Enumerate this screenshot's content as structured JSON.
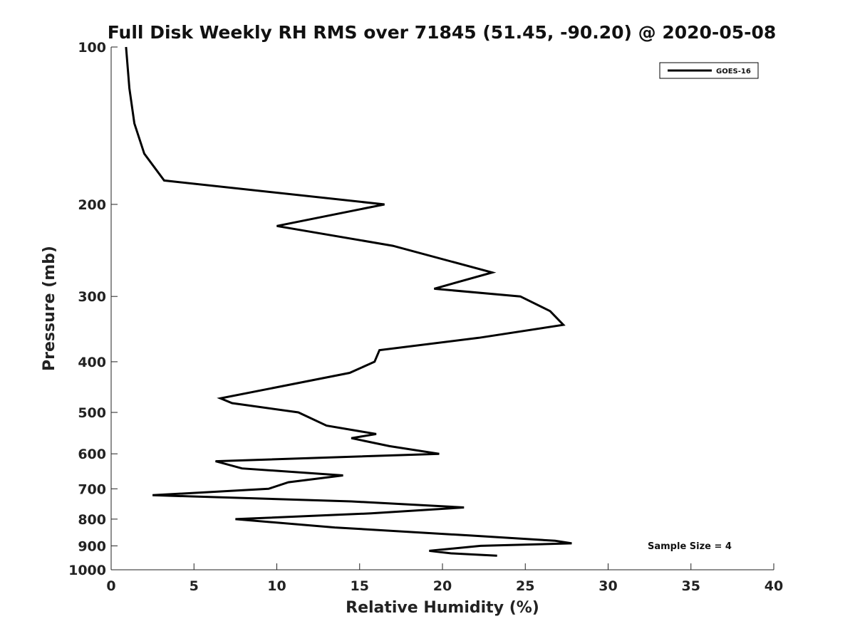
{
  "chart_data": {
    "type": "line",
    "title": "Full Disk Weekly RH RMS over 71845 (51.45, -90.20) @ 2020-05-08",
    "xlabel": "Relative Humidity (%)",
    "ylabel": "Pressure (mb)",
    "xlim": [
      0,
      40
    ],
    "ylim": [
      1000,
      100
    ],
    "yscale": "log",
    "xticks": [
      0,
      5,
      10,
      15,
      20,
      25,
      30,
      35,
      40
    ],
    "yticks": [
      100,
      200,
      300,
      400,
      500,
      600,
      700,
      800,
      900,
      1000
    ],
    "grid": false,
    "legend_position": "top-right",
    "series": [
      {
        "name": "GOES-16",
        "color": "#000000",
        "points": [
          [
            0.9,
            100
          ],
          [
            1.1,
            120
          ],
          [
            1.4,
            140
          ],
          [
            2.0,
            160
          ],
          [
            3.2,
            180
          ],
          [
            16.5,
            200
          ],
          [
            10.0,
            220
          ],
          [
            17.0,
            240
          ],
          [
            23.0,
            270
          ],
          [
            19.5,
            290
          ],
          [
            24.7,
            300
          ],
          [
            26.5,
            320
          ],
          [
            27.3,
            340
          ],
          [
            22.2,
            360
          ],
          [
            16.2,
            380
          ],
          [
            15.9,
            400
          ],
          [
            14.4,
            420
          ],
          [
            6.6,
            470
          ],
          [
            7.3,
            480
          ],
          [
            11.3,
            500
          ],
          [
            13.0,
            530
          ],
          [
            16.0,
            550
          ],
          [
            14.5,
            560
          ],
          [
            16.8,
            580
          ],
          [
            19.8,
            600
          ],
          [
            6.3,
            620
          ],
          [
            7.9,
            640
          ],
          [
            14.0,
            660
          ],
          [
            10.7,
            680
          ],
          [
            9.5,
            700
          ],
          [
            2.5,
            720
          ],
          [
            14.5,
            740
          ],
          [
            21.3,
            760
          ],
          [
            15.7,
            780
          ],
          [
            7.5,
            800
          ],
          [
            13.5,
            830
          ],
          [
            21.7,
            860
          ],
          [
            26.8,
            880
          ],
          [
            27.8,
            890
          ],
          [
            22.3,
            900
          ],
          [
            19.2,
            920
          ],
          [
            20.5,
            930
          ],
          [
            23.3,
            940
          ]
        ]
      }
    ],
    "annotation": "Sample Size = 4"
  }
}
